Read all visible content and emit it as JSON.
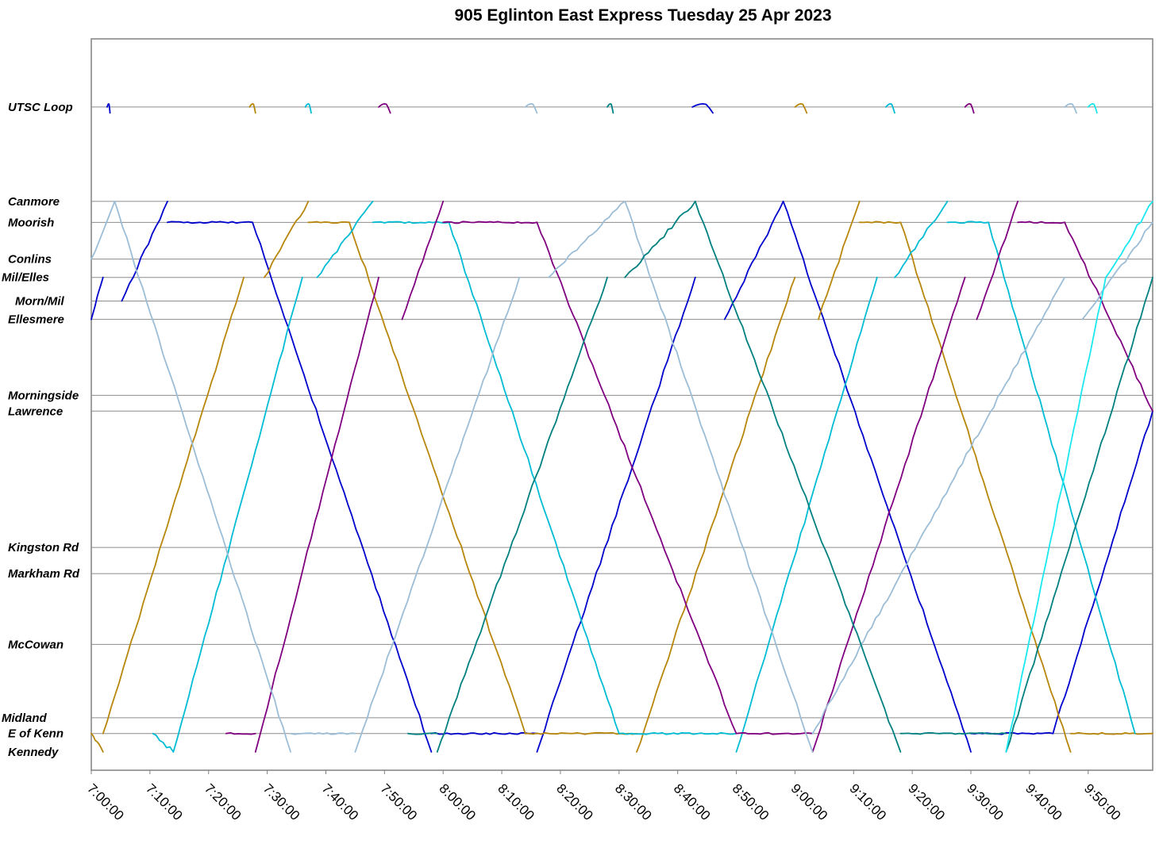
{
  "chart_data": {
    "type": "line",
    "title": "905 Eglinton East Express Tuesday 25 Apr 2023",
    "xlabel": "",
    "ylabel": "",
    "xlim": [
      "7:00:00",
      "10:00:00"
    ],
    "x_ticks": [
      "7:00:00",
      "7:10:00",
      "7:20:00",
      "7:30:00",
      "7:40:00",
      "7:50:00",
      "8:00:00",
      "8:10:00",
      "8:20:00",
      "8:30:00",
      "8:40:00",
      "8:50:00",
      "9:00:00",
      "9:10:00",
      "9:20:00",
      "9:30:00",
      "9:40:00",
      "9:50:00"
    ],
    "stops": [
      {
        "name": "UTSC Loop",
        "km": 16.6
      },
      {
        "name": "Canmore",
        "km": 14.8
      },
      {
        "name": "Moorish",
        "km": 14.4
      },
      {
        "name": "Conlins",
        "km": 13.7
      },
      {
        "name": "Mil/Elles",
        "km": 13.35
      },
      {
        "name": "Morn/Mil",
        "km": 12.9
      },
      {
        "name": "Ellesmere",
        "km": 12.55
      },
      {
        "name": "Morningside",
        "km": 11.1
      },
      {
        "name": "Lawrence",
        "km": 10.8
      },
      {
        "name": "Kingston Rd",
        "km": 8.2
      },
      {
        "name": "Markham Rd",
        "km": 7.7
      },
      {
        "name": "McCowan",
        "km": 6.35
      },
      {
        "name": "Midland",
        "km": 4.95
      },
      {
        "name": "E of Kenn",
        "km": 4.65
      },
      {
        "name": "Kennedy",
        "km": 4.3
      }
    ],
    "grid": true,
    "legend": "none",
    "series": [
      {
        "color": "#0000cc",
        "trips": [
          {
            "t0": 0.0,
            "t1": 2.0,
            "from": "Ellesmere",
            "to": "Mil/Elles"
          },
          {
            "t0": 2.7,
            "t1": 3.2,
            "from": "UTSC Loop",
            "to": "UTSC Loop"
          },
          {
            "t0": 5.2,
            "t1": 13.0,
            "from": "Morn/Mil",
            "to": "Canmore"
          },
          {
            "t0": 13.0,
            "t1": 27.5,
            "from": "Moorish",
            "to": "Moorish"
          },
          {
            "t0": 27.5,
            "t1": 58.0,
            "from": "Moorish",
            "to": "Kennedy"
          },
          {
            "t0": 58.0,
            "t1": 76.0,
            "from": "E of Kenn",
            "to": "E of Kenn"
          },
          {
            "t0": 76.0,
            "t1": 103.0,
            "from": "Kennedy",
            "to": "Mil/Elles"
          },
          {
            "t0": 102.5,
            "t1": 106.0,
            "from": "UTSC Loop",
            "to": "UTSC Loop"
          },
          {
            "t0": 108.0,
            "t1": 118.0,
            "from": "Ellesmere",
            "to": "Canmore"
          },
          {
            "t0": 118.0,
            "t1": 150.0,
            "from": "Canmore",
            "to": "Kennedy"
          },
          {
            "t0": 150.0,
            "t1": 164.0,
            "from": "E of Kenn",
            "to": "E of Kenn"
          },
          {
            "t0": 164.0,
            "t1": 181.0,
            "from": "E of Kenn",
            "to": "Lawrence"
          }
        ]
      },
      {
        "color": "#b8860b",
        "trips": [
          {
            "t0": 0.0,
            "t1": 2.0,
            "from": "E of Kenn",
            "to": "Kennedy"
          },
          {
            "t0": 2.0,
            "t1": 26.0,
            "from": "E of Kenn",
            "to": "Mil/Elles"
          },
          {
            "t0": 27.0,
            "t1": 28.0,
            "from": "UTSC Loop",
            "to": "UTSC Loop"
          },
          {
            "t0": 29.5,
            "t1": 37.0,
            "from": "Mil/Elles",
            "to": "Canmore"
          },
          {
            "t0": 37.0,
            "t1": 44.0,
            "from": "Moorish",
            "to": "Moorish"
          },
          {
            "t0": 44.0,
            "t1": 74.0,
            "from": "Moorish",
            "to": "E of Kenn"
          },
          {
            "t0": 74.0,
            "t1": 93.0,
            "from": "E of Kenn",
            "to": "E of Kenn"
          },
          {
            "t0": 93.0,
            "t1": 120.0,
            "from": "Kennedy",
            "to": "Mil/Elles"
          },
          {
            "t0": 120.0,
            "t1": 122.0,
            "from": "UTSC Loop",
            "to": "UTSC Loop"
          },
          {
            "t0": 124.0,
            "t1": 131.0,
            "from": "Ellesmere",
            "to": "Canmore"
          },
          {
            "t0": 131.0,
            "t1": 138.0,
            "from": "Moorish",
            "to": "Moorish"
          },
          {
            "t0": 138.0,
            "t1": 167.0,
            "from": "Moorish",
            "to": "Kennedy"
          },
          {
            "t0": 167.0,
            "t1": 181.0,
            "from": "E of Kenn",
            "to": "E of Kenn"
          }
        ]
      },
      {
        "color": "#00bcd4",
        "trips": [
          {
            "t0": 10.5,
            "t1": 14.0,
            "from": "E of Kenn",
            "to": "Kennedy"
          },
          {
            "t0": 14.0,
            "t1": 36.0,
            "from": "Kennedy",
            "to": "Mil/Elles"
          },
          {
            "t0": 36.5,
            "t1": 37.5,
            "from": "UTSC Loop",
            "to": "UTSC Loop"
          },
          {
            "t0": 38.5,
            "t1": 48.0,
            "from": "Mil/Elles",
            "to": "Canmore"
          },
          {
            "t0": 48.0,
            "t1": 61.0,
            "from": "Moorish",
            "to": "Moorish"
          },
          {
            "t0": 61.0,
            "t1": 90.0,
            "from": "Moorish",
            "to": "E of Kenn"
          },
          {
            "t0": 90.0,
            "t1": 110.0,
            "from": "E of Kenn",
            "to": "E of Kenn"
          },
          {
            "t0": 110.0,
            "t1": 134.0,
            "from": "Kennedy",
            "to": "Mil/Elles"
          },
          {
            "t0": 135.5,
            "t1": 137.0,
            "from": "UTSC Loop",
            "to": "UTSC Loop"
          },
          {
            "t0": 137.0,
            "t1": 146.0,
            "from": "Mil/Elles",
            "to": "Canmore"
          },
          {
            "t0": 146.0,
            "t1": 153.0,
            "from": "Moorish",
            "to": "Moorish"
          },
          {
            "t0": 153.0,
            "t1": 178.0,
            "from": "Moorish",
            "to": "E of Kenn"
          }
        ]
      },
      {
        "color": "#800080",
        "trips": [
          {
            "t0": 23.0,
            "t1": 28.0,
            "from": "E of Kenn",
            "to": "E of Kenn"
          },
          {
            "t0": 28.0,
            "t1": 49.0,
            "from": "Kennedy",
            "to": "Mil/Elles"
          },
          {
            "t0": 49.0,
            "t1": 51.0,
            "from": "UTSC Loop",
            "to": "UTSC Loop"
          },
          {
            "t0": 53.0,
            "t1": 60.0,
            "from": "Ellesmere",
            "to": "Canmore"
          },
          {
            "t0": 60.0,
            "t1": 76.0,
            "from": "Moorish",
            "to": "Moorish"
          },
          {
            "t0": 76.0,
            "t1": 110.0,
            "from": "Moorish",
            "to": "E of Kenn"
          },
          {
            "t0": 110.0,
            "t1": 123.0,
            "from": "E of Kenn",
            "to": "E of Kenn"
          },
          {
            "t0": 123.0,
            "t1": 149.0,
            "from": "Kennedy",
            "to": "Mil/Elles"
          },
          {
            "t0": 149.0,
            "t1": 150.5,
            "from": "UTSC Loop",
            "to": "UTSC Loop"
          },
          {
            "t0": 151.0,
            "t1": 158.0,
            "from": "Ellesmere",
            "to": "Canmore"
          },
          {
            "t0": 158.0,
            "t1": 166.0,
            "from": "Moorish",
            "to": "Moorish"
          },
          {
            "t0": 166.0,
            "t1": 181.0,
            "from": "Moorish",
            "to": "Lawrence"
          }
        ]
      },
      {
        "color": "#9cbdd6",
        "trips": [
          {
            "t0": 0.0,
            "t1": 4.0,
            "from": "Conlins",
            "to": "Canmore"
          },
          {
            "t0": 4.0,
            "t1": 34.0,
            "from": "Canmore",
            "to": "Kennedy"
          },
          {
            "t0": 34.0,
            "t1": 45.0,
            "from": "E of Kenn",
            "to": "E of Kenn"
          },
          {
            "t0": 45.0,
            "t1": 73.0,
            "from": "Kennedy",
            "to": "Mil/Elles"
          },
          {
            "t0": 74.0,
            "t1": 76.0,
            "from": "UTSC Loop",
            "to": "UTSC Loop"
          },
          {
            "t0": 78.0,
            "t1": 91.0,
            "from": "Mil/Elles",
            "to": "Canmore"
          },
          {
            "t0": 91.0,
            "t1": 123.0,
            "from": "Canmore",
            "to": "Kennedy"
          },
          {
            "t0": 123.0,
            "t1": 166.0,
            "from": "E of Kenn",
            "to": "Mil/Elles"
          },
          {
            "t0": 166.0,
            "t1": 168.0,
            "from": "UTSC Loop",
            "to": "UTSC Loop"
          },
          {
            "t0": 169.0,
            "t1": 181.0,
            "from": "Ellesmere",
            "to": "Moorish"
          }
        ]
      },
      {
        "color": "#008080",
        "trips": [
          {
            "t0": 54.0,
            "t1": 59.0,
            "from": "E of Kenn",
            "to": "E of Kenn"
          },
          {
            "t0": 59.0,
            "t1": 88.0,
            "from": "Kennedy",
            "to": "Mil/Elles"
          },
          {
            "t0": 88.0,
            "t1": 89.0,
            "from": "UTSC Loop",
            "to": "UTSC Loop"
          },
          {
            "t0": 91.0,
            "t1": 103.0,
            "from": "Mil/Elles",
            "to": "Canmore"
          },
          {
            "t0": 103.0,
            "t1": 138.0,
            "from": "Canmore",
            "to": "Kennedy"
          },
          {
            "t0": 138.0,
            "t1": 156.0,
            "from": "E of Kenn",
            "to": "E of Kenn"
          },
          {
            "t0": 156.0,
            "t1": 181.0,
            "from": "Kennedy",
            "to": "Mil/Elles"
          }
        ]
      },
      {
        "color": "#1ae8f0",
        "trips": [
          {
            "t0": 170.0,
            "t1": 171.5,
            "from": "UTSC Loop",
            "to": "UTSC Loop"
          },
          {
            "t0": 156.0,
            "t1": 173.0,
            "from": "Kennedy",
            "to": "Mil/Elles"
          },
          {
            "t0": 173.0,
            "t1": 181.0,
            "from": "Mil/Elles",
            "to": "Canmore"
          }
        ]
      }
    ]
  }
}
